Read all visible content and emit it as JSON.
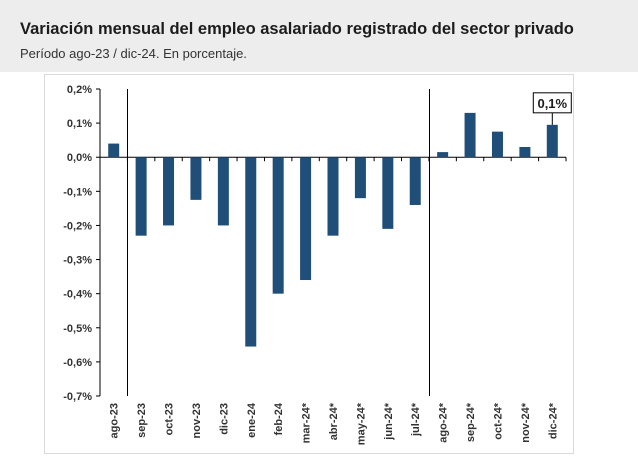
{
  "header": {
    "title": "Variación mensual del empleo asalariado registrado del sector privado",
    "subtitle": "Período ago-23 / dic-24. En porcentaje."
  },
  "colors": {
    "bar": "#1f4e79",
    "header_bg": "#ededed",
    "text": "#1c1c1c"
  },
  "chart_data": {
    "type": "bar",
    "title": "",
    "xlabel": "",
    "ylabel": "",
    "categories": [
      "ago-23",
      "sep-23",
      "oct-23",
      "nov-23",
      "dic-23",
      "ene-24",
      "feb-24",
      "mar-24*",
      "abr-24*",
      "may-24*",
      "jun-24*",
      "jul-24*",
      "ago-24*",
      "sep-24*",
      "oct-24*",
      "nov-24*",
      "dic-24*"
    ],
    "values": [
      0.04,
      -0.23,
      -0.2,
      -0.125,
      -0.2,
      -0.555,
      -0.4,
      -0.36,
      -0.23,
      -0.12,
      -0.21,
      -0.14,
      0.015,
      0.13,
      0.075,
      0.03,
      0.095
    ],
    "ylim": [
      -0.7,
      0.2
    ],
    "yticks": [
      0.2,
      0.1,
      0.0,
      -0.1,
      -0.2,
      -0.3,
      -0.4,
      -0.5,
      -0.6,
      -0.7
    ],
    "ytick_labels": [
      "0,2%",
      "0,1%",
      "0,0%",
      "-0,1%",
      "-0,2%",
      "-0,3%",
      "-0,4%",
      "-0,5%",
      "-0,6%",
      "-0,7%"
    ],
    "grid": false,
    "legend": "none",
    "separators_after": [
      "ago-23",
      "jul-24*"
    ],
    "annotation": {
      "category": "dic-24*",
      "text": "0,1%"
    }
  }
}
